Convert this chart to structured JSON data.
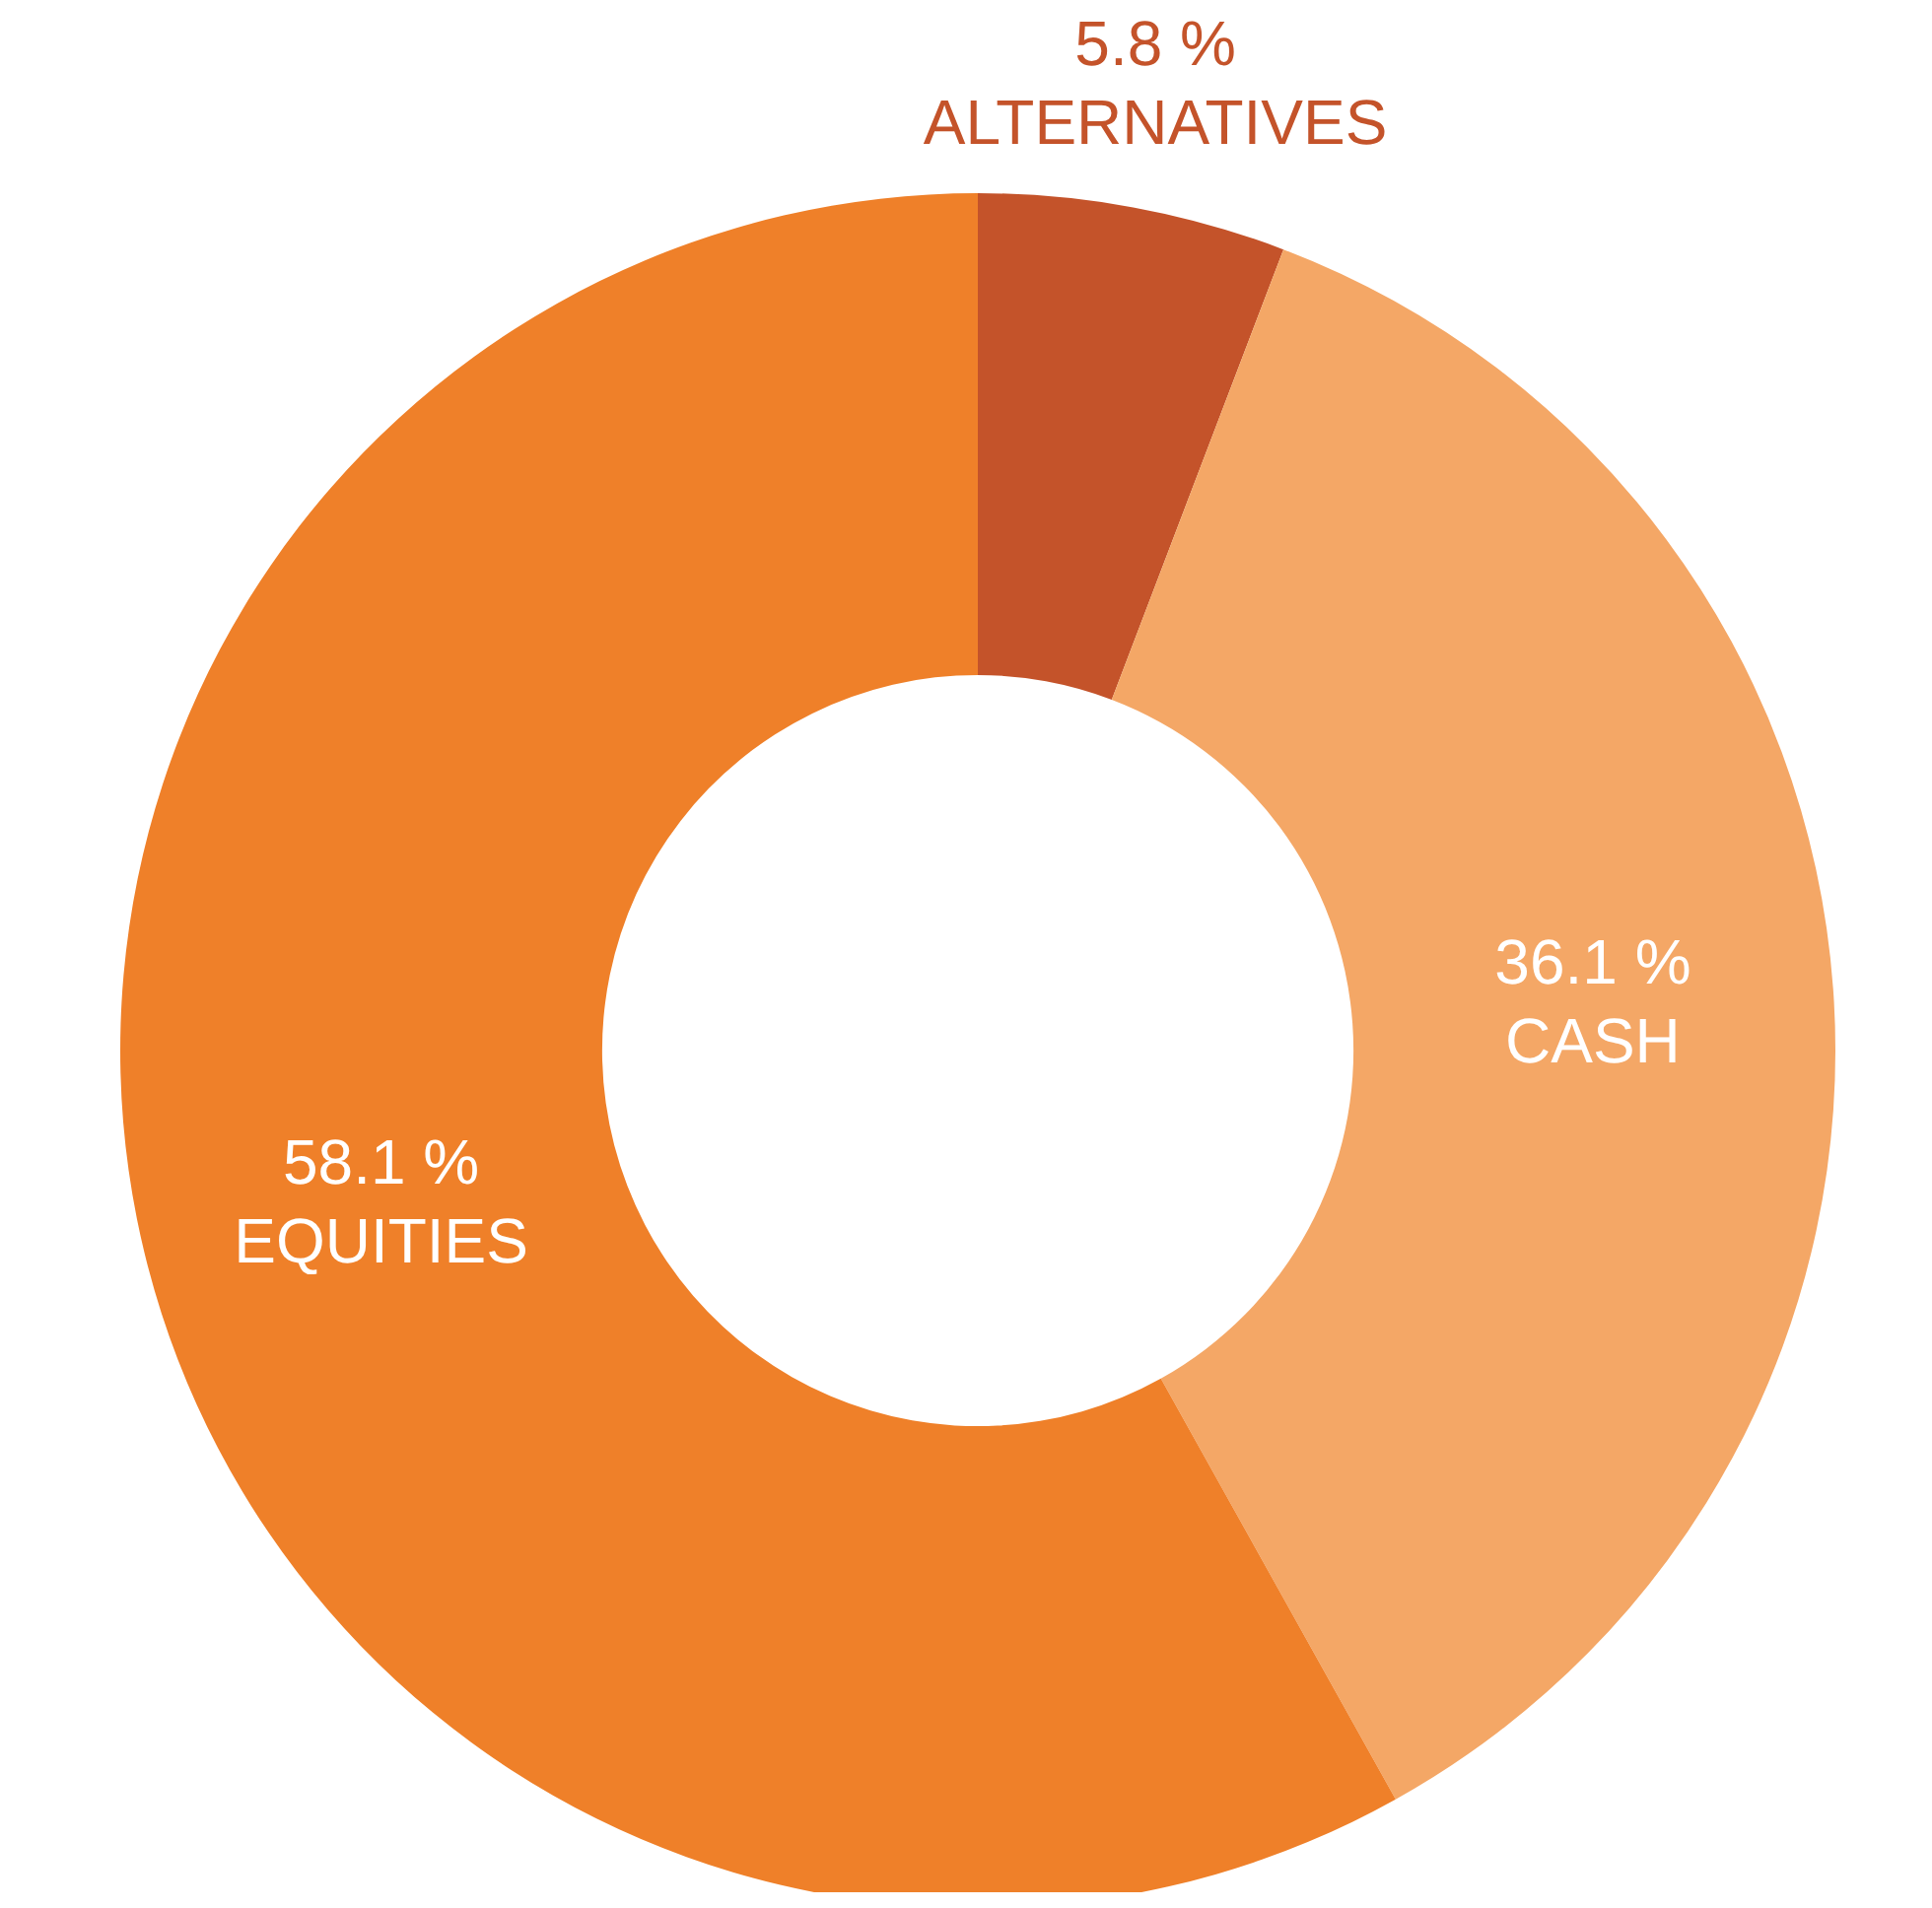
{
  "chart_data": {
    "type": "donut",
    "categories": [
      "ALTERNATIVES",
      "CASH",
      "EQUITIES"
    ],
    "values": [
      5.8,
      36.1,
      58.1
    ],
    "value_labels": [
      "5.8 %",
      "36.1 %",
      "58.1 %"
    ],
    "colors": [
      "#c4532a",
      "#f4a766",
      "#ef8029"
    ],
    "legend": false
  }
}
